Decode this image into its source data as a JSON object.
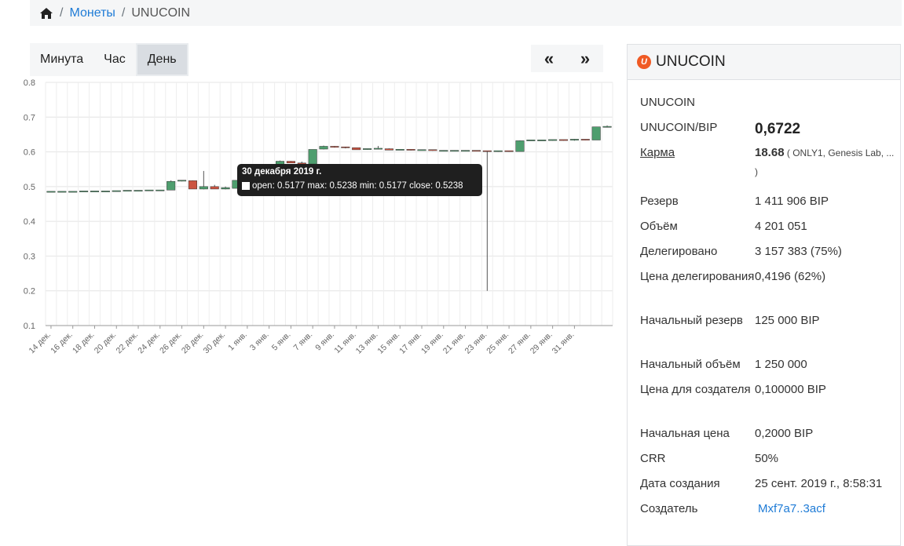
{
  "breadcrumb": {
    "coins_label": "Монеты",
    "current": "UNUCOIN",
    "separator": "/"
  },
  "timeframes": [
    {
      "label": "Минута",
      "active": false
    },
    {
      "label": "Час",
      "active": false
    },
    {
      "label": "День",
      "active": true
    }
  ],
  "nav": {
    "prev": "«",
    "next": "»"
  },
  "tooltip": {
    "date": "30 декабря 2019 г.",
    "ohlc": "open: 0.5177  max: 0.5238  min: 0.5177  close: 0.5238"
  },
  "chart_data": {
    "type": "candlestick",
    "ylim": [
      0.1,
      0.8
    ],
    "yticks": [
      "0.8",
      "0.7",
      "0.6",
      "0.5",
      "0.4",
      "0.3",
      "0.2",
      "0.1"
    ],
    "up_color": "#4e9e6e",
    "down_color": "#cc5441",
    "x_tick_labels": [
      "14 дек.",
      "16 дек.",
      "18 дек.",
      "20 дек.",
      "22 дек.",
      "24 дек.",
      "26 дек.",
      "28 дек.",
      "30 дек.",
      "1 янв.",
      "3 янв.",
      "5 янв.",
      "7 янв.",
      "9 янв.",
      "11 янв.",
      "13 янв.",
      "15 янв.",
      "17 янв.",
      "19 янв.",
      "21 янв.",
      "23 янв.",
      "25 янв.",
      "27 янв.",
      "29 янв.",
      "31 янв."
    ],
    "candles": [
      {
        "o": 0.485,
        "h": 0.485,
        "l": 0.485,
        "c": 0.485
      },
      {
        "o": 0.485,
        "h": 0.485,
        "l": 0.485,
        "c": 0.485
      },
      {
        "o": 0.485,
        "h": 0.485,
        "l": 0.485,
        "c": 0.485
      },
      {
        "o": 0.485,
        "h": 0.486,
        "l": 0.485,
        "c": 0.486
      },
      {
        "o": 0.486,
        "h": 0.486,
        "l": 0.485,
        "c": 0.486
      },
      {
        "o": 0.486,
        "h": 0.486,
        "l": 0.486,
        "c": 0.486
      },
      {
        "o": 0.486,
        "h": 0.487,
        "l": 0.486,
        "c": 0.487
      },
      {
        "o": 0.487,
        "h": 0.488,
        "l": 0.487,
        "c": 0.488
      },
      {
        "o": 0.488,
        "h": 0.488,
        "l": 0.487,
        "c": 0.488
      },
      {
        "o": 0.488,
        "h": 0.489,
        "l": 0.488,
        "c": 0.489
      },
      {
        "o": 0.489,
        "h": 0.489,
        "l": 0.488,
        "c": 0.489
      },
      {
        "o": 0.49,
        "h": 0.518,
        "l": 0.49,
        "c": 0.515
      },
      {
        "o": 0.516,
        "h": 0.517,
        "l": 0.515,
        "c": 0.517
      },
      {
        "o": 0.517,
        "h": 0.518,
        "l": 0.493,
        "c": 0.493
      },
      {
        "o": 0.493,
        "h": 0.545,
        "l": 0.492,
        "c": 0.5
      },
      {
        "o": 0.5,
        "h": 0.505,
        "l": 0.493,
        "c": 0.493
      },
      {
        "o": 0.493,
        "h": 0.5,
        "l": 0.492,
        "c": 0.497
      },
      {
        "o": 0.495,
        "h": 0.518,
        "l": 0.495,
        "c": 0.518
      },
      {
        "o": 0.5177,
        "h": 0.5238,
        "l": 0.5177,
        "c": 0.5238
      },
      {
        "o": 0.524,
        "h": 0.54,
        "l": 0.524,
        "c": 0.538
      },
      {
        "o": 0.538,
        "h": 0.56,
        "l": 0.538,
        "c": 0.557
      },
      {
        "o": 0.557,
        "h": 0.575,
        "l": 0.557,
        "c": 0.573
      },
      {
        "o": 0.573,
        "h": 0.574,
        "l": 0.568,
        "c": 0.568
      },
      {
        "o": 0.568,
        "h": 0.572,
        "l": 0.565,
        "c": 0.565
      },
      {
        "o": 0.565,
        "h": 0.607,
        "l": 0.565,
        "c": 0.607
      },
      {
        "o": 0.608,
        "h": 0.618,
        "l": 0.607,
        "c": 0.616
      },
      {
        "o": 0.616,
        "h": 0.617,
        "l": 0.612,
        "c": 0.613
      },
      {
        "o": 0.613,
        "h": 0.615,
        "l": 0.61,
        "c": 0.612
      },
      {
        "o": 0.612,
        "h": 0.612,
        "l": 0.606,
        "c": 0.606
      },
      {
        "o": 0.606,
        "h": 0.608,
        "l": 0.606,
        "c": 0.608
      },
      {
        "o": 0.608,
        "h": 0.617,
        "l": 0.607,
        "c": 0.609
      },
      {
        "o": 0.609,
        "h": 0.61,
        "l": 0.605,
        "c": 0.605
      },
      {
        "o": 0.605,
        "h": 0.606,
        "l": 0.605,
        "c": 0.606
      },
      {
        "o": 0.606,
        "h": 0.606,
        "l": 0.604,
        "c": 0.605
      },
      {
        "o": 0.605,
        "h": 0.606,
        "l": 0.604,
        "c": 0.605
      },
      {
        "o": 0.605,
        "h": 0.605,
        "l": 0.603,
        "c": 0.603
      },
      {
        "o": 0.603,
        "h": 0.604,
        "l": 0.602,
        "c": 0.603
      },
      {
        "o": 0.603,
        "h": 0.604,
        "l": 0.602,
        "c": 0.603
      },
      {
        "o": 0.603,
        "h": 0.604,
        "l": 0.602,
        "c": 0.603
      },
      {
        "o": 0.603,
        "h": 0.603,
        "l": 0.602,
        "c": 0.602
      },
      {
        "o": 0.602,
        "h": 0.603,
        "l": 0.2,
        "c": 0.601
      },
      {
        "o": 0.601,
        "h": 0.602,
        "l": 0.6,
        "c": 0.602
      },
      {
        "o": 0.602,
        "h": 0.602,
        "l": 0.6,
        "c": 0.601
      },
      {
        "o": 0.601,
        "h": 0.633,
        "l": 0.601,
        "c": 0.632
      },
      {
        "o": 0.632,
        "h": 0.634,
        "l": 0.632,
        "c": 0.633
      },
      {
        "o": 0.633,
        "h": 0.634,
        "l": 0.632,
        "c": 0.633
      },
      {
        "o": 0.633,
        "h": 0.635,
        "l": 0.632,
        "c": 0.634
      },
      {
        "o": 0.634,
        "h": 0.634,
        "l": 0.632,
        "c": 0.633
      },
      {
        "o": 0.633,
        "h": 0.637,
        "l": 0.632,
        "c": 0.635
      },
      {
        "o": 0.635,
        "h": 0.636,
        "l": 0.633,
        "c": 0.634
      },
      {
        "o": 0.634,
        "h": 0.672,
        "l": 0.634,
        "c": 0.672
      },
      {
        "o": 0.671,
        "h": 0.676,
        "l": 0.67,
        "c": 0.672
      }
    ]
  },
  "panel": {
    "title": "UNUCOIN",
    "coin_icon_letter": "U",
    "rows": [
      {
        "key": "UNUCOIN",
        "value": ""
      },
      {
        "key": "UNUCOIN/BIP",
        "value": "0,6722",
        "style": "big"
      },
      {
        "key": "Карма",
        "value": "18.68",
        "extra": " ( ONLY1, Genesis Lab, ... )",
        "style": "karma"
      },
      {
        "key": "Резерв",
        "value": "1 411 906 BIP"
      },
      {
        "key": "Объём",
        "value": "4 201 051"
      },
      {
        "key": "Делегировано",
        "value": "3 157 383 (75%)"
      },
      {
        "key": "Цена делегирования",
        "value": "0,4196 (62%)"
      },
      {
        "key": "Начальный резерв",
        "value": "125 000 BIP"
      },
      {
        "key": "Начальный объём",
        "value": "1 250 000"
      },
      {
        "key": "Цена для создателя",
        "value": "0,100000 BIP"
      },
      {
        "key": "Начальная цена",
        "value": "0,2000 BIP"
      },
      {
        "key": "CRR",
        "value": "50%"
      },
      {
        "key": "Дата создания",
        "value": "25 сент. 2019 г., 8:58:31"
      },
      {
        "key": "Создатель",
        "value": "Mxf7a7..3acf",
        "style": "link"
      }
    ]
  }
}
